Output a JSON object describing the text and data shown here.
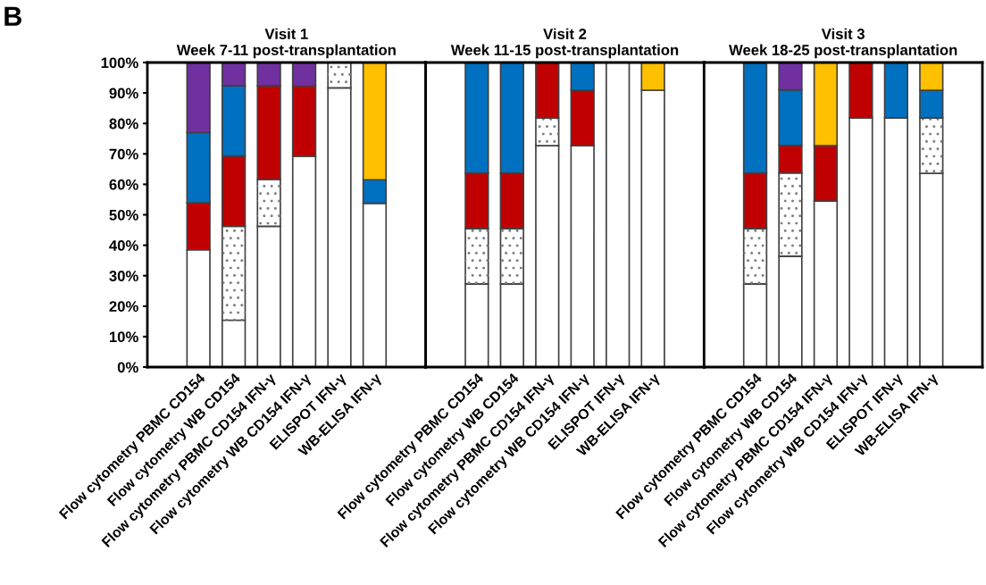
{
  "chart_data": [
    {
      "type": "bar",
      "stacked": true,
      "title": "Visit 1\nWeek 7-11 post-transplantation",
      "annotations": [
        "B"
      ],
      "categories": [
        "Flow cytometry PBMC CD154",
        "Flow cytometry WB CD154",
        "Flow cytometry PBMC CD154 IFN-γ",
        "Flow cytometry WB CD154 IFN-γ",
        "ELISPOT IFN-γ",
        "WB-ELISA IFN-γ"
      ],
      "series": [
        {
          "color": "#ffffff",
          "values": [
            38.5,
            15.4,
            46.2,
            69.2,
            91.7,
            53.8
          ]
        },
        {
          "color": "#ffffff",
          "values": [
            null,
            30.8,
            15.4,
            null,
            8.3,
            null
          ]
        },
        {
          "color": "#c00000",
          "values": [
            15.4,
            23.1,
            30.8,
            23.1,
            null,
            null
          ]
        },
        {
          "color": "#0070c0",
          "values": [
            23.1,
            23.1,
            null,
            null,
            null,
            7.7
          ]
        },
        {
          "color": "#7030a0",
          "values": [
            23.1,
            7.7,
            7.7,
            7.7,
            null,
            null
          ]
        },
        {
          "color": "#ffc000",
          "values": [
            null,
            null,
            null,
            null,
            null,
            38.5
          ]
        }
      ],
      "ylim": [
        0,
        100
      ],
      "yticks": [
        {
          "value": 0,
          "label": "0%"
        },
        {
          "value": 10,
          "label": "10%"
        },
        {
          "value": 20,
          "label": "20%"
        },
        {
          "value": 30,
          "label": "30%"
        },
        {
          "value": 40,
          "label": "40%"
        },
        {
          "value": 50,
          "label": "50%"
        },
        {
          "value": 60,
          "label": "60%"
        },
        {
          "value": 70,
          "label": "70%"
        },
        {
          "value": 80,
          "label": "80%"
        },
        {
          "value": 90,
          "label": "90%"
        },
        {
          "value": 100,
          "label": "100%"
        }
      ],
      "grid": false,
      "legend": false
    },
    {
      "type": "bar",
      "stacked": true,
      "title": "Visit 2\nWeek 11-15 post-transplantation",
      "categories": [
        "Flow cytometry PBMC CD154",
        "Flow cytometry WB CD154",
        "Flow cytometry PBMC CD154 IFN-γ",
        "Flow cytometry WB CD154 IFN-γ",
        "ELISPOT IFN-γ",
        "WB-ELISA IFN-γ"
      ],
      "series": [
        {
          "color": "#ffffff",
          "values": [
            27.3,
            27.3,
            72.7,
            72.7,
            100,
            90.9
          ]
        },
        {
          "color": "#ffffff",
          "values": [
            18.2,
            18.2,
            9.1,
            null,
            null,
            null
          ]
        },
        {
          "color": "#c00000",
          "values": [
            18.2,
            18.2,
            18.2,
            18.2,
            null,
            null
          ]
        },
        {
          "color": "#0070c0",
          "values": [
            36.4,
            36.4,
            null,
            9.1,
            null,
            null
          ]
        },
        {
          "color": "#ffc000",
          "values": [
            null,
            null,
            null,
            null,
            null,
            9.1
          ]
        }
      ],
      "ylim": [
        0,
        100
      ],
      "tick_labels": "x",
      "grid": false,
      "legend": false
    },
    {
      "type": "bar",
      "stacked": true,
      "title": "Visit 3\nWeek 18-25 post-transplantation",
      "categories": [
        "Flow cytometry PBMC CD154",
        "Flow cytometry WB CD154",
        "Flow cytometry PBMC CD154 IFN-γ",
        "Flow cytometry WB CD154 IFN-γ",
        "ELISPOT IFN-γ",
        "WB-ELISA IFN-γ"
      ],
      "series": [
        {
          "color": "#ffffff",
          "values": [
            27.3,
            36.4,
            54.5,
            81.8,
            81.8,
            63.6
          ]
        },
        {
          "color": "#ffffff",
          "values": [
            18.2,
            27.3,
            null,
            null,
            null,
            18.2
          ]
        },
        {
          "color": "#c00000",
          "values": [
            18.2,
            9.1,
            18.2,
            18.2,
            null,
            null
          ]
        },
        {
          "color": "#0070c0",
          "values": [
            36.4,
            18.2,
            null,
            null,
            18.2,
            9.1
          ]
        },
        {
          "color": "#7030a0",
          "values": [
            null,
            9.1,
            null,
            null,
            null,
            null
          ]
        },
        {
          "color": "#ffc000",
          "values": [
            null,
            null,
            27.3,
            null,
            null,
            9.1
          ]
        }
      ],
      "ylim": [
        0,
        100
      ],
      "tick_labels": "x",
      "grid": false,
      "legend": false
    }
  ]
}
